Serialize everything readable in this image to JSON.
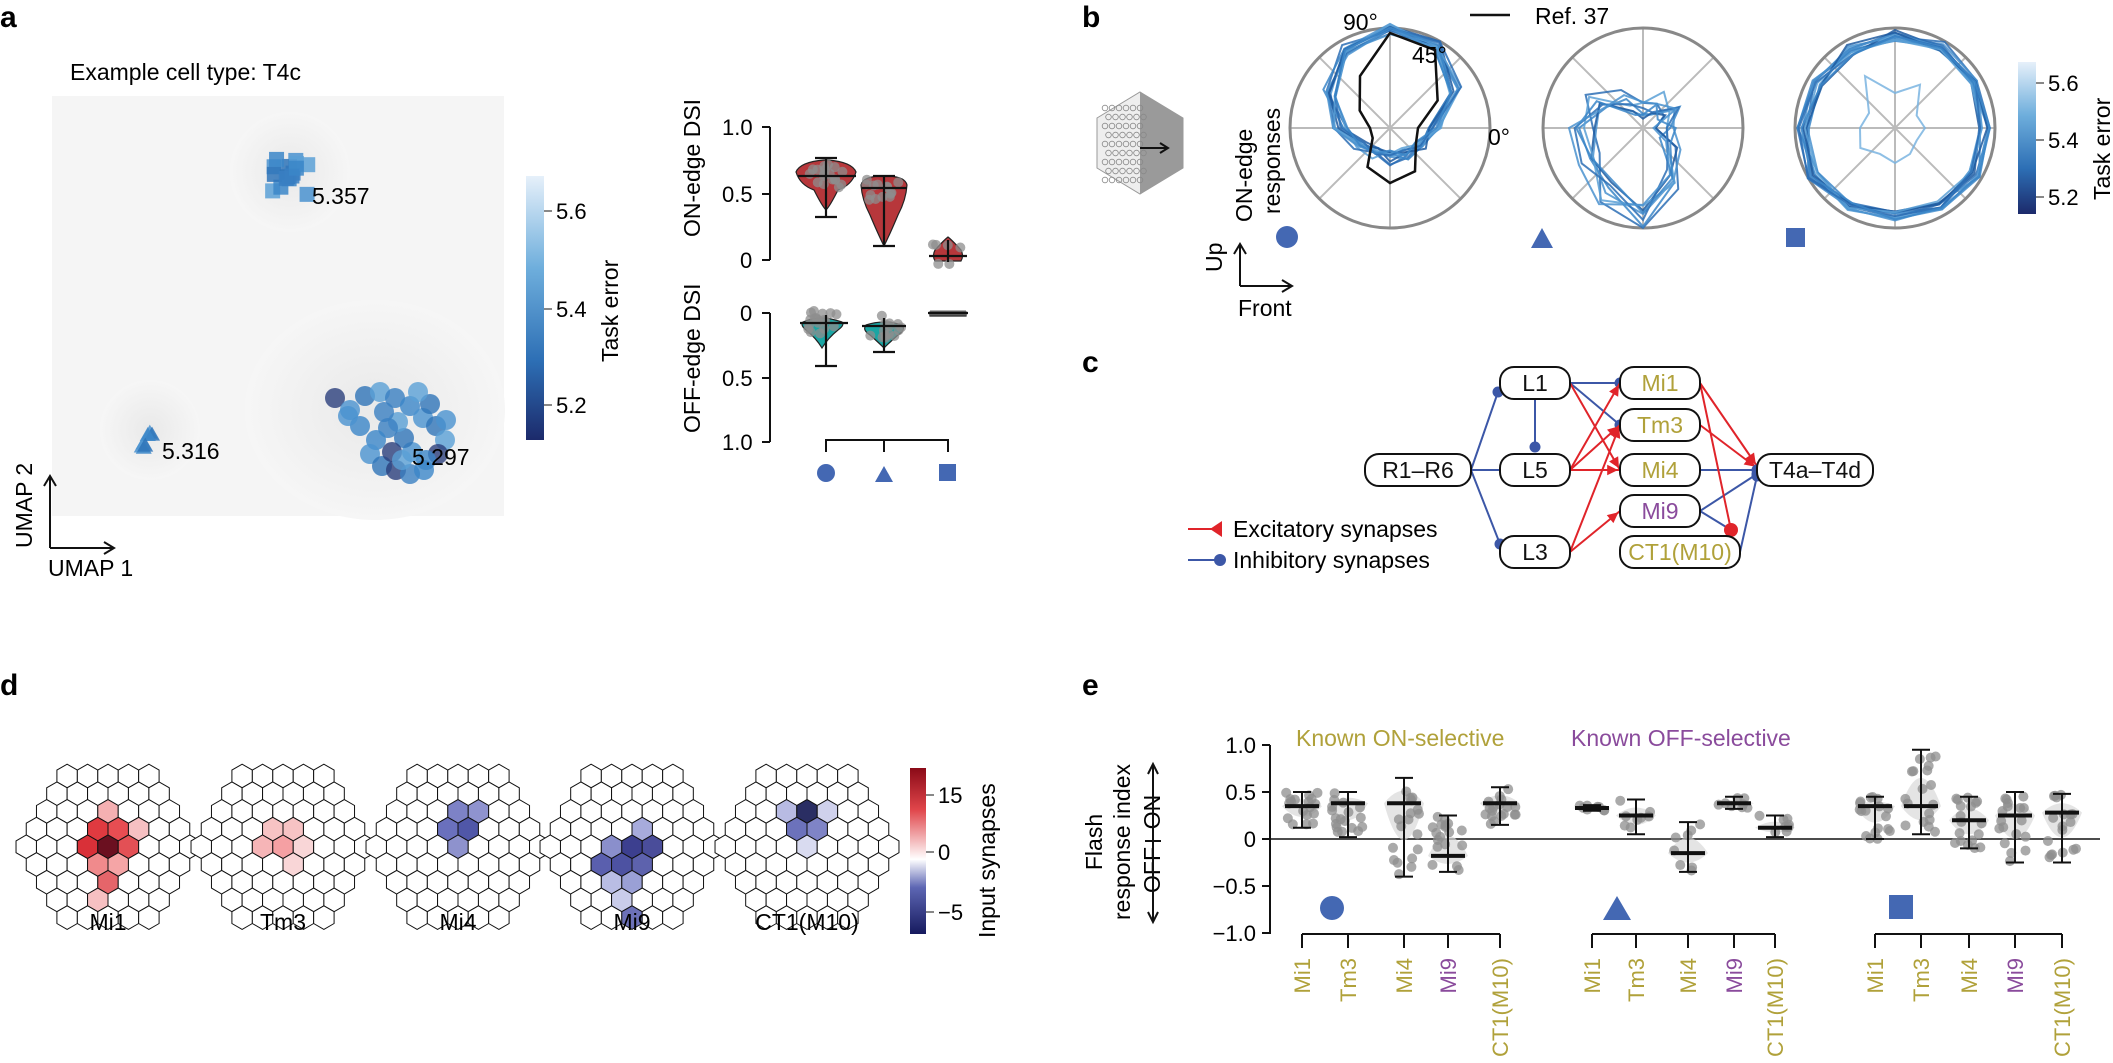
{
  "panels": {
    "a": "a",
    "b": "b",
    "c": "c",
    "d": "d",
    "e": "e"
  },
  "panel_a": {
    "title": "Example cell type: T4c",
    "umap_x": "UMAP 1",
    "umap_y": "UMAP 2",
    "cluster_labels": [
      "5.357",
      "5.316",
      "5.297"
    ],
    "colorbar_label": "Task error",
    "colorbar_ticks": [
      "5.6",
      "5.4",
      "5.2"
    ],
    "on_dsi_label": "ON-edge DSI",
    "off_dsi_label": "OFF-edge DSI",
    "on_ticks": [
      "1.0",
      "0.5",
      "0"
    ],
    "off_ticks": [
      "0",
      "0.5",
      "1.0"
    ]
  },
  "panel_b": {
    "legend": "Ref. 37",
    "ylabel": "ON-edge responses",
    "angles": [
      "90°",
      "45°",
      "0°"
    ],
    "axis_up": "Up",
    "axis_front": "Front",
    "colorbar_label": "Task error",
    "colorbar_ticks": [
      "5.6",
      "5.4",
      "5.2"
    ]
  },
  "panel_c": {
    "nodes": [
      "L1",
      "L5",
      "L3",
      "R1–R6",
      "Mi1",
      "Tm3",
      "Mi4",
      "Mi9",
      "CT1(M10)",
      "T4a–T4d"
    ],
    "legend_exc": "Excitatory synapses",
    "legend_inh": "Inhibitory synapses",
    "colors": {
      "exc": "#e0242a",
      "inh": "#3c57a7",
      "on": "#b0a13a",
      "off": "#8a4b9c"
    }
  },
  "panel_d": {
    "cells": [
      "Mi1",
      "Tm3",
      "Mi4",
      "Mi9",
      "CT1(M10)"
    ],
    "colorbar_label": "Input synapses",
    "colorbar_ticks": [
      "15",
      "0",
      "−5"
    ]
  },
  "panel_e": {
    "known_on": "Known ON-selective",
    "known_off": "Known OFF-selective",
    "ylabel1": "Flash",
    "ylabel2": "response index",
    "on": "ON",
    "off": "OFF",
    "yticks": [
      "1.0",
      "0.5",
      "0",
      "−0.5",
      "−1.0"
    ],
    "groups": [
      {
        "cells": [
          "Mi1",
          "Tm3",
          "Mi4",
          "Mi9",
          "CT1(M10)"
        ]
      },
      {
        "cells": [
          "Mi1",
          "Tm3",
          "Mi4",
          "Mi9",
          "CT1(M10)"
        ]
      },
      {
        "cells": [
          "Mi1",
          "Tm3",
          "Mi4",
          "Mi9",
          "CT1(M10)"
        ]
      }
    ]
  }
}
